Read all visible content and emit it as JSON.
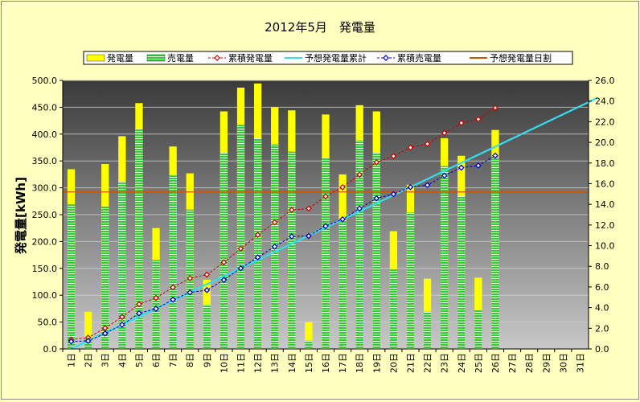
{
  "chart_data": {
    "type": "bar",
    "title": "2012年5月　発電量",
    "ylabel": "発電量[kWh]",
    "ylim": [
      0,
      500
    ],
    "y2lim": [
      0,
      26
    ],
    "y_ticks": [
      "0.0",
      "50.0",
      "100.0",
      "150.0",
      "200.0",
      "250.0",
      "300.0",
      "350.0",
      "400.0",
      "450.0",
      "500.0"
    ],
    "y2_ticks": [
      "0.0",
      "2.0",
      "4.0",
      "6.0",
      "8.0",
      "10.0",
      "12.0",
      "14.0",
      "16.0",
      "18.0",
      "20.0",
      "22.0",
      "24.0",
      "26.0"
    ],
    "categories": [
      "1日",
      "2日",
      "3日",
      "4日",
      "5日",
      "6日",
      "7日",
      "8日",
      "9日",
      "10日",
      "11日",
      "12日",
      "13日",
      "14日",
      "15日",
      "16日",
      "17日",
      "18日",
      "19日",
      "20日",
      "21日",
      "22日",
      "23日",
      "24日",
      "25日",
      "26日",
      "27日",
      "28日",
      "29日",
      "30日",
      "31日"
    ],
    "legend": {
      "position": "top",
      "items": [
        {
          "label": "発電量",
          "kind": "bar",
          "color": "#ffff00"
        },
        {
          "label": "売電量",
          "kind": "bar",
          "color": "#33cc33"
        },
        {
          "label": "累積発電量",
          "kind": "line-marker",
          "color": "#cc0000"
        },
        {
          "label": "予想発電量累計",
          "kind": "line",
          "color": "#33ddee"
        },
        {
          "label": "累積売電量",
          "kind": "line-marker",
          "color": "#0000cc"
        },
        {
          "label": "予想発電量日割",
          "kind": "line",
          "color": "#cc5500"
        }
      ]
    },
    "series": [
      {
        "name": "発電量",
        "axis": "right",
        "values": [
          17.4,
          3.6,
          17.9,
          20.6,
          23.8,
          11.7,
          19.6,
          17.0,
          6.7,
          23.0,
          25.3,
          25.7,
          23.4,
          23.1,
          2.6,
          22.7,
          16.9,
          23.6,
          23.0,
          11.4,
          15.9,
          6.8,
          20.4,
          18.7,
          6.9,
          21.2,
          null,
          null,
          null,
          null,
          null
        ]
      },
      {
        "name": "売電量",
        "axis": "right",
        "values": [
          14.0,
          1.0,
          13.8,
          16.2,
          21.3,
          8.6,
          16.8,
          13.5,
          4.3,
          19.0,
          21.7,
          20.4,
          19.8,
          19.1,
          0.8,
          18.5,
          12.5,
          20.2,
          19.0,
          7.7,
          13.2,
          3.6,
          17.7,
          14.8,
          3.8,
          18.6,
          null,
          null,
          null,
          null,
          null
        ]
      },
      {
        "name": "累積発電量",
        "axis": "left",
        "values": [
          17.4,
          21.0,
          38.9,
          59.5,
          83.3,
          95.0,
          114.6,
          131.6,
          138.3,
          161.3,
          186.6,
          212.3,
          235.7,
          258.8,
          261.4,
          284.1,
          301.0,
          324.6,
          347.6,
          359.0,
          374.9,
          381.7,
          402.1,
          420.8,
          427.7,
          448.9,
          null,
          null,
          null,
          null,
          null
        ]
      },
      {
        "name": "累積売電量",
        "axis": "left",
        "values": [
          14.0,
          15.0,
          28.8,
          45.0,
          66.3,
          74.9,
          91.7,
          105.2,
          109.5,
          128.5,
          150.2,
          170.6,
          190.4,
          209.5,
          210.3,
          228.8,
          241.3,
          261.5,
          280.5,
          288.2,
          301.4,
          305.0,
          322.7,
          337.5,
          341.3,
          359.9,
          null,
          null,
          null,
          null,
          null
        ]
      },
      {
        "name": "予想発電量累計",
        "axis": "left",
        "start": [
          0.5,
          0
        ],
        "end": [
          31.5,
          467
        ]
      },
      {
        "name": "予想発電量日割",
        "axis": "right",
        "constant": 15.2
      }
    ]
  }
}
